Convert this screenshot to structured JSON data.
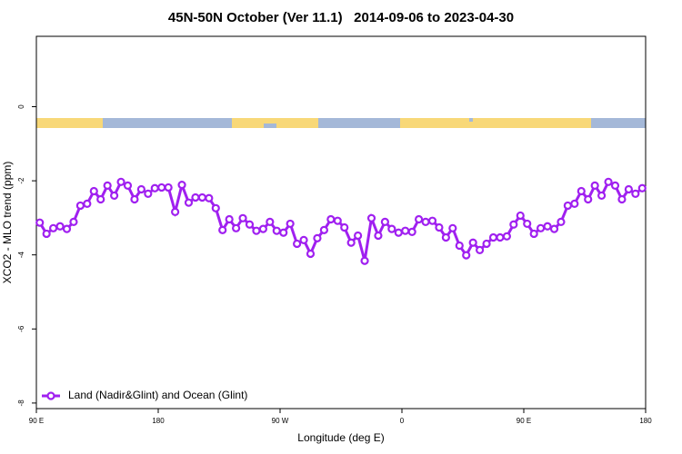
{
  "chart_data": {
    "type": "line",
    "title": "45N-50N October (Ver 11.1)   2014-09-06 to 2023-04-30",
    "x_label": "Longitude (deg E)",
    "y_label": "XCO2 - MLO trend (ppm)",
    "legend": "bottomleft",
    "xlim": [
      90,
      540
    ],
    "ylim": [
      -8.15,
      1.9
    ],
    "xticks": [
      {
        "value": 90,
        "label": "90 E"
      },
      180,
      {
        "value": 270,
        "label": "90 W"
      },
      {
        "value": 360,
        "label": "0"
      },
      {
        "value": 450,
        "label": "90 E"
      },
      {
        "value": 540,
        "label": "180"
      }
    ],
    "yticks": [
      0,
      -2,
      -4,
      -6,
      -8
    ],
    "x": [
      92.5,
      97.5,
      102.5,
      107.5,
      112.5,
      117.5,
      122.5,
      127.5,
      132.5,
      137.5,
      142.5,
      147.5,
      152.5,
      157.5,
      162.5,
      167.5,
      172.5,
      177.5,
      182.5,
      187.5,
      192.5,
      197.5,
      202.5,
      207.5,
      212.5,
      217.5,
      222.5,
      227.5,
      232.5,
      237.5,
      242.5,
      247.5,
      252.5,
      257.5,
      262.5,
      267.5,
      272.5,
      277.5,
      282.5,
      287.5,
      292.5,
      297.5,
      302.5,
      307.5,
      312.5,
      317.5,
      322.5,
      327.5,
      332.5,
      337.5,
      342.5,
      347.5,
      352.5,
      357.5,
      362.5,
      367.5,
      372.5,
      377.5,
      382.5,
      387.5,
      392.5,
      397.5,
      402.5,
      407.5,
      412.5,
      417.5,
      422.5,
      427.5,
      432.5,
      437.5,
      442.5,
      447.5,
      452.5,
      457.5,
      462.5,
      467.5,
      472.5,
      477.5,
      482.5,
      487.5,
      492.5,
      497.5,
      502.5,
      507.5,
      512.5,
      517.5,
      522.5,
      527.5,
      532.5,
      537.5
    ],
    "series": [
      {
        "name": "Land (Nadir&Glint) and Ocean (Glint)",
        "color": "#a020f0",
        "values": [
          -3.13,
          -3.43,
          -3.28,
          -3.23,
          -3.3,
          -3.11,
          -2.67,
          -2.62,
          -2.28,
          -2.5,
          -2.13,
          -2.4,
          -2.03,
          -2.13,
          -2.5,
          -2.23,
          -2.35,
          -2.2,
          -2.18,
          -2.18,
          -2.84,
          -2.11,
          -2.59,
          -2.45,
          -2.45,
          -2.47,
          -2.74,
          -3.33,
          -3.04,
          -3.28,
          -3.01,
          -3.18,
          -3.35,
          -3.3,
          -3.11,
          -3.35,
          -3.4,
          -3.16,
          -3.7,
          -3.6,
          -3.97,
          -3.55,
          -3.33,
          -3.04,
          -3.08,
          -3.26,
          -3.67,
          -3.48,
          -4.16,
          -3.01,
          -3.48,
          -3.11,
          -3.3,
          -3.4,
          -3.35,
          -3.38,
          -3.04,
          -3.11,
          -3.08,
          -3.26,
          -3.53,
          -3.28,
          -3.75,
          -4.01,
          -3.67,
          -3.87,
          -3.7,
          -3.53,
          -3.53,
          -3.5,
          -3.18,
          -2.94,
          -3.16,
          -3.43,
          -3.28,
          -3.23,
          -3.3,
          -3.11,
          -2.67,
          -2.62,
          -2.28,
          -2.5,
          -2.13,
          -2.4,
          -2.03,
          -2.13,
          -2.5,
          -2.23,
          -2.35,
          -2.2
        ]
      }
    ]
  }
}
